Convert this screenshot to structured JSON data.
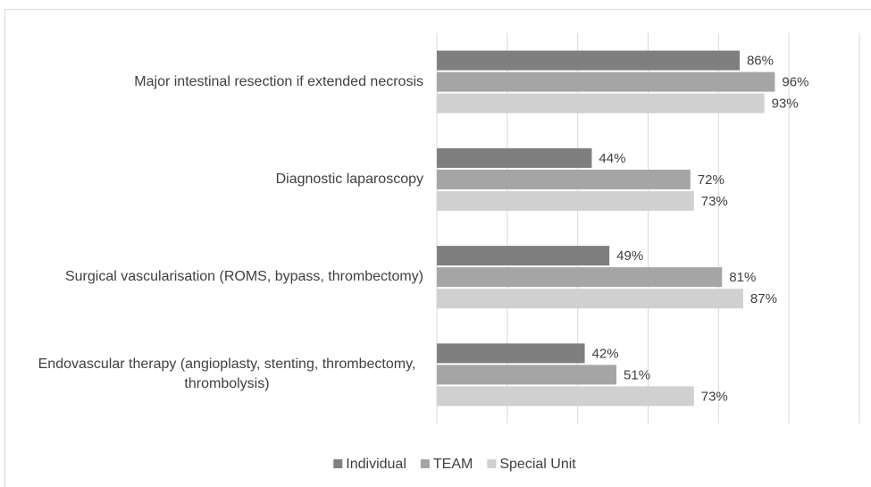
{
  "chart_data": {
    "type": "hbar",
    "categories": [
      "Major intestinal resection if extended necrosis",
      "Diagnostic laparoscopy",
      "Surgical vascularisation (ROMS, bypass, thrombectomy)",
      "Endovascular therapy (angioplasty, stenting, thrombectomy, thrombolysis)"
    ],
    "series": [
      {
        "name": "Individual",
        "color": "#7f7f7f",
        "values": [
          86,
          44,
          49,
          42
        ],
        "value_labels": [
          "86%",
          "44%",
          "49%",
          "42%"
        ]
      },
      {
        "name": "TEAM",
        "color": "#a5a5a5",
        "values": [
          96,
          72,
          81,
          51
        ],
        "value_labels": [
          "96%",
          "72%",
          "81%",
          "51%"
        ]
      },
      {
        "name": "Special Unit",
        "color": "#d0d0d0",
        "values": [
          93,
          73,
          87,
          73
        ],
        "value_labels": [
          "93%",
          "73%",
          "87%",
          "73%"
        ]
      }
    ],
    "xlim": [
      0,
      120
    ],
    "xticks": [
      0,
      20,
      40,
      60,
      80,
      100,
      120
    ],
    "grid": true,
    "legend": "bottom"
  }
}
